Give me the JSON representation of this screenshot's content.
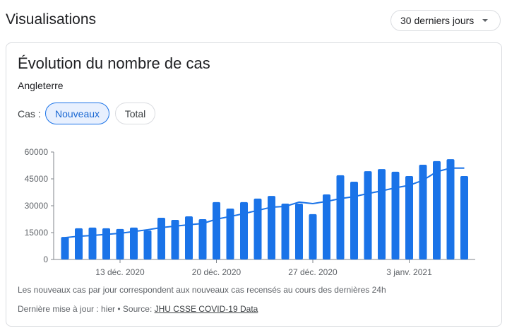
{
  "header": {
    "title": "Visualisations",
    "range_label": "30 derniers jours"
  },
  "card": {
    "title": "Évolution du nombre de cas",
    "region": "Angleterre",
    "cas_label": "Cas :",
    "chips": [
      {
        "label": "Nouveaux",
        "selected": true
      },
      {
        "label": "Total",
        "selected": false
      }
    ],
    "note": "Les nouveaux cas par jour correspondent aux nouveaux cas recensés au cours des dernières 24h",
    "update_prefix": "Dernière mise à jour : hier • Source: ",
    "source_link": "JHU CSSE COVID-19 Data"
  },
  "colors": {
    "bar": "#1a73e8",
    "line": "#1a73e8",
    "chip_selected_bg": "#e8f0fe"
  },
  "chart_data": {
    "type": "bar",
    "x_start": "2020-12-09",
    "x_end": "2021-01-07",
    "xticks": [
      "13 déc. 2020",
      "20 déc. 2020",
      "27 déc. 2020",
      "3 janv. 2021"
    ],
    "yticks": [
      "0",
      "15000",
      "30000",
      "45000",
      "60000"
    ],
    "ylim": [
      0,
      60000
    ],
    "series": [
      {
        "type": "bar",
        "values": [
          12600,
          17400,
          17800,
          17400,
          17000,
          17800,
          16200,
          23300,
          22100,
          24100,
          22500,
          32000,
          28400,
          32000,
          34000,
          35500,
          31200,
          31200,
          25300,
          36300,
          47000,
          43400,
          49300,
          50500,
          49000,
          46600,
          52900,
          54900,
          56000,
          46600
        ]
      },
      {
        "type": "line",
        "values": [
          12200,
          13000,
          13400,
          14000,
          14600,
          15600,
          16600,
          17800,
          18600,
          19400,
          20100,
          22500,
          24000,
          25600,
          27400,
          29200,
          29600,
          32000,
          31200,
          32400,
          34000,
          35100,
          36800,
          38300,
          40000,
          41400,
          44200,
          49000,
          51000,
          51000
        ]
      }
    ]
  }
}
